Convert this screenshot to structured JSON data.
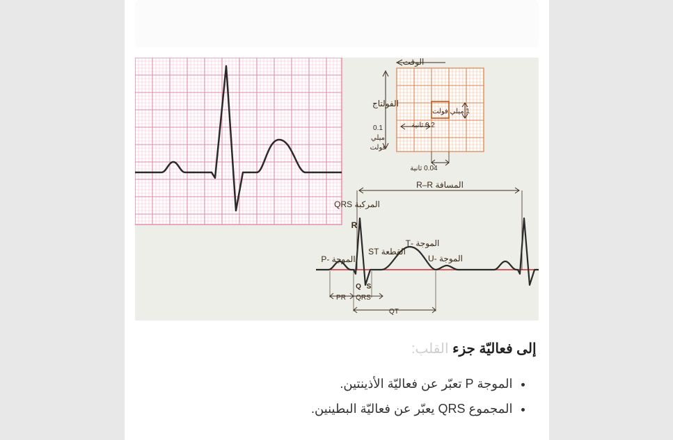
{
  "page": {
    "bg_color": "#e8e8e8",
    "content_bg": "#ffffff"
  },
  "diagram": {
    "bg_color": "#eeeee8",
    "grid_panel": {
      "grid_color_minor": "#f4c6d2",
      "grid_color_major": "#e28aa5",
      "bg": "#ffffff",
      "minor_step": 5,
      "major_step": 25,
      "waveform_color": "#2a2a2a",
      "waveform_width": 2.5
    },
    "calibration": {
      "grid_color_minor": "#f2bfa0",
      "grid_color_major": "#e0814a",
      "bg": "#ffffff",
      "labels": {
        "time": "الوقت",
        "voltage": "الفولتاج",
        "one_mv": "1 ميلي فولت",
        "point2s": "0.2 ثانية",
        "point1": "0.1",
        "milli": "ميلي",
        "volt": "فولت",
        "point04s": "0.04 ثانية"
      }
    },
    "labeled_wave": {
      "baseline_color": "#d12c2c",
      "wave_color": "#2a2a2a",
      "labels": {
        "rr": "المسافة R–R",
        "qrs_complex": "المركبة QRS",
        "r": "R",
        "p_wave": "الموجة -P",
        "t_wave": "الموجة -T",
        "u_wave": "الموجة -U",
        "st_segment": "القطعة ST",
        "q": "Q",
        "s": "S",
        "pr": "PR",
        "qrs": "QRS",
        "qt": "QT"
      }
    }
  },
  "text": {
    "heading_prefix": "إلى فعاليّة جزء",
    "heading_faded": "القلب:",
    "bullet1": "الموجة P تعبّر عن فعاليّة الأذينتين.",
    "bullet2": "المجموع QRS يعبّر عن فعاليّة البطينين."
  }
}
